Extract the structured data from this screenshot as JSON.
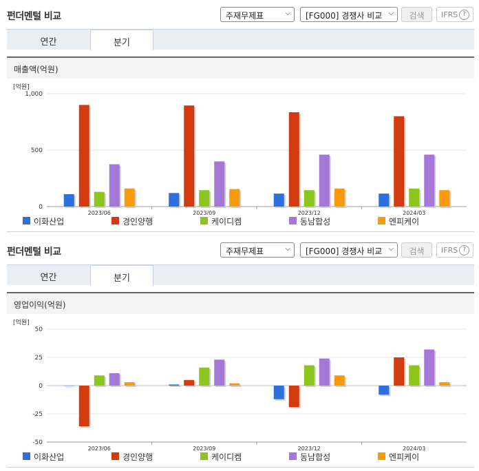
{
  "panels": [
    {
      "title": "펀더멘털 비교",
      "select1": "주재무제표",
      "select2": "[FG000] 경쟁사 비교",
      "search_label": "검색",
      "ifrs_label": "IFRS",
      "help_label": "?",
      "tabs": [
        "연간",
        "분기"
      ],
      "active_tab": 1,
      "section_title": "매출액(억원)",
      "unit": "[억원]"
    },
    {
      "title": "펀더멘털 비교",
      "select1": "주재무제표",
      "select2": "[FG000] 경쟁사 비교",
      "search_label": "검색",
      "ifrs_label": "IFRS",
      "help_label": "?",
      "tabs": [
        "연간",
        "분기"
      ],
      "active_tab": 1,
      "section_title": "영업이익(억원)",
      "unit": "[억원]"
    }
  ],
  "chart_data": [
    {
      "type": "bar",
      "title": "매출액(억원)",
      "categories": [
        "2023/06",
        "2023/09",
        "2023/12",
        "2024/03"
      ],
      "ylim": [
        0,
        1000
      ],
      "yticks": [
        0,
        500,
        1000
      ],
      "ytick_labels": [
        "0",
        "500",
        "1,000"
      ],
      "grid": true,
      "legend": "bottom",
      "series": [
        {
          "name": "이화산업",
          "color": "#2d6fdc",
          "values": [
            110,
            120,
            115,
            115
          ]
        },
        {
          "name": "경인양행",
          "color": "#d23b10",
          "values": [
            900,
            895,
            835,
            800
          ]
        },
        {
          "name": "케이디켐",
          "color": "#8cc61c",
          "values": [
            130,
            145,
            145,
            160
          ]
        },
        {
          "name": "동남합성",
          "color": "#a578d8",
          "values": [
            375,
            400,
            460,
            460
          ]
        },
        {
          "name": "엔피케이",
          "color": "#f79a0c",
          "values": [
            160,
            155,
            160,
            145
          ]
        }
      ]
    },
    {
      "type": "bar",
      "title": "영업이익(억원)",
      "categories": [
        "2023/06",
        "2023/09",
        "2023/12",
        "2024/03"
      ],
      "ylim": [
        -50,
        50
      ],
      "yticks": [
        -50,
        -25,
        0,
        25,
        50
      ],
      "ytick_labels": [
        "-50",
        "-25",
        "0",
        "25",
        "50"
      ],
      "grid": true,
      "legend": "bottom",
      "series": [
        {
          "name": "이화산업",
          "color": "#2d6fdc",
          "values": [
            0,
            1,
            -12,
            -8
          ]
        },
        {
          "name": "경인양행",
          "color": "#d23b10",
          "values": [
            -36,
            5,
            -19,
            25
          ]
        },
        {
          "name": "케이디켐",
          "color": "#8cc61c",
          "values": [
            9,
            16,
            18,
            18
          ]
        },
        {
          "name": "동남합성",
          "color": "#a578d8",
          "values": [
            11,
            23,
            24,
            32
          ]
        },
        {
          "name": "엔피케이",
          "color": "#f79a0c",
          "values": [
            3,
            2,
            9,
            3
          ]
        }
      ]
    }
  ]
}
